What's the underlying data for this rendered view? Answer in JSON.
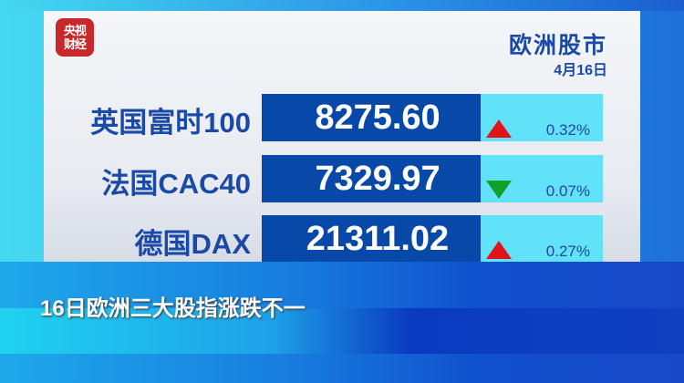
{
  "logo": {
    "line1": "央视",
    "line2": "财经"
  },
  "header": {
    "title": "欧洲股市",
    "date": "4月16日"
  },
  "indices": [
    {
      "name": "英国富时100",
      "value": "8275.60",
      "direction": "up",
      "change": "0.32%"
    },
    {
      "name": "法国CAC40",
      "value": "7329.97",
      "direction": "down",
      "change": "0.07%"
    },
    {
      "name": "德国DAX",
      "value": "21311.02",
      "direction": "up",
      "change": "0.27%"
    }
  ],
  "caption": "16日欧洲三大股指涨跌不一",
  "colors": {
    "up": "#e0141a",
    "down": "#12a02a",
    "value_bg": "#0748a8",
    "change_bg": "#62e2f8"
  }
}
